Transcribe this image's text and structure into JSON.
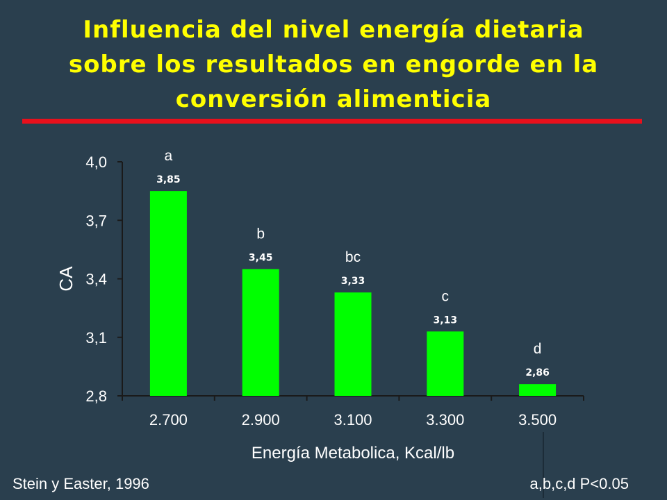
{
  "title_lines": [
    "Influencia del nivel energía dietaria",
    "sobre los resultados en engorde en la",
    "conversión alimenticia"
  ],
  "footer": {
    "source": "Stein y Easter, 1996",
    "significance": "a,b,c,d P<0.05"
  },
  "colors": {
    "background": "#2a3f4e",
    "title": "#ffff00",
    "rule": "#e8101c",
    "bar": "#00ff00",
    "text": "#ffffff"
  },
  "chart_data": {
    "type": "bar",
    "categories": [
      "2.700",
      "2.900",
      "3.100",
      "3.300",
      "3.500"
    ],
    "values": [
      3.85,
      3.45,
      3.33,
      3.13,
      2.86
    ],
    "value_labels": [
      "3,85",
      "3,45",
      "3,33",
      "3,13",
      "2,86"
    ],
    "significance_letters": [
      "a",
      "b",
      "bc",
      "c",
      "d"
    ],
    "xlabel": "Energía Metabolica, Kcal/lb",
    "ylabel": "CA",
    "ylim": [
      2.8,
      4.0
    ],
    "yticks": [
      2.8,
      3.1,
      3.4,
      3.7,
      4.0
    ],
    "ytick_labels": [
      "2,8",
      "3,1",
      "3,4",
      "3,7",
      "4,0"
    ],
    "grid": false,
    "legend": "none"
  }
}
